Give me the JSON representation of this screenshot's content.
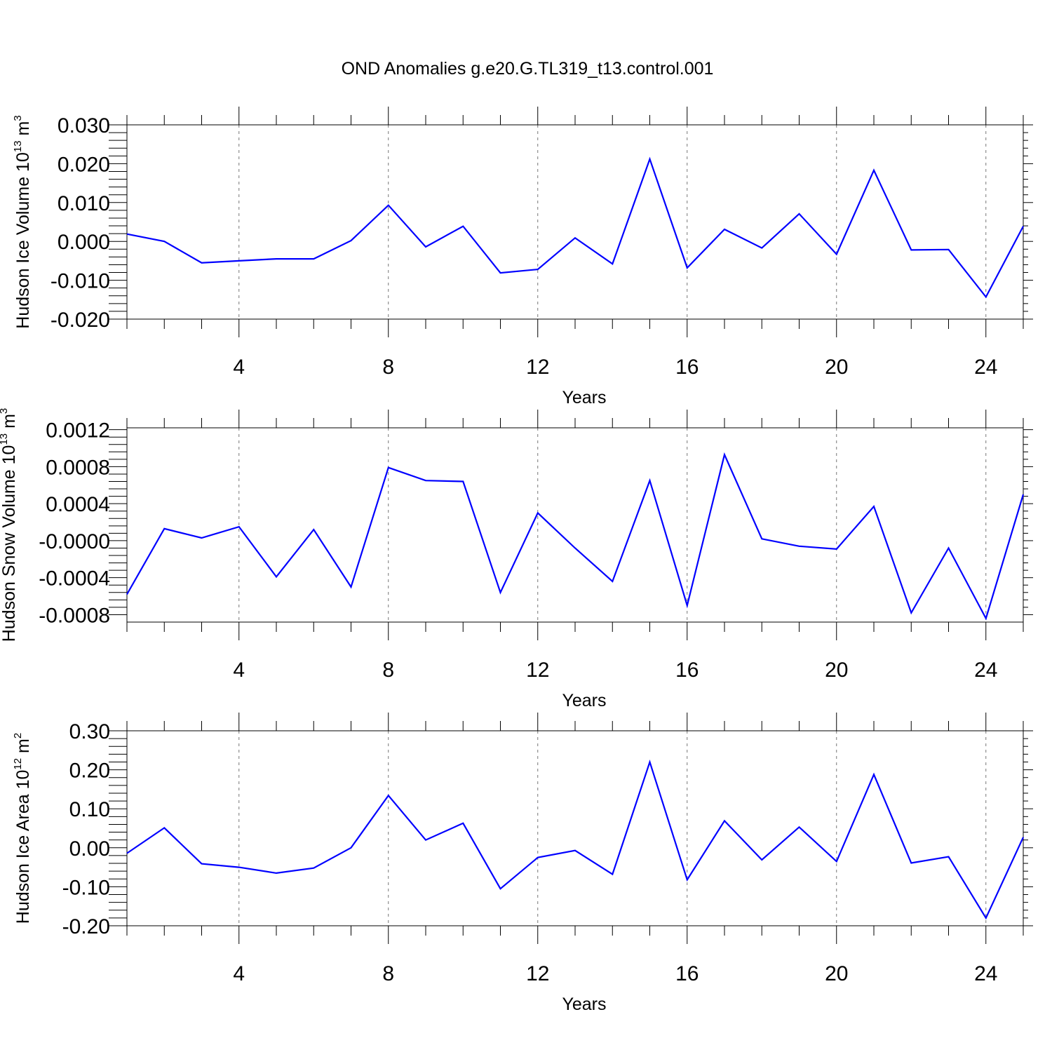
{
  "title": "OND Anomalies g.e20.G.TL319_t13.control.001",
  "line_color": "#0000ff",
  "chart_data": [
    {
      "type": "line",
      "ylabel": "Hudson Ice Volume 10",
      "ylabel_exp": "13",
      "ylabel_unit": " m",
      "ylabel_unit_exp": "3",
      "xlabel": "Years",
      "xlim": [
        1,
        25
      ],
      "ylim": [
        -0.02,
        0.03
      ],
      "ytick_values": [
        -0.02,
        -0.01,
        0.0,
        0.01,
        0.02,
        0.03
      ],
      "ytick_labels": [
        "-0.020",
        "-0.010",
        "0.000",
        "0.010",
        "0.020",
        "0.030"
      ],
      "xtick_values": [
        4,
        8,
        12,
        16,
        20,
        24
      ],
      "xtick_labels": [
        "4",
        "8",
        "12",
        "16",
        "20",
        "24"
      ],
      "grid": "vertical dashed at major x ticks",
      "x": [
        1,
        2,
        3,
        4,
        5,
        6,
        7,
        8,
        9,
        10,
        11,
        12,
        13,
        14,
        15,
        16,
        17,
        18,
        19,
        20,
        21,
        22,
        23,
        24,
        25
      ],
      "values": [
        0.0019,
        0.0,
        -0.0055,
        -0.005,
        -0.0045,
        -0.0045,
        0.0002,
        0.0093,
        -0.0014,
        0.0039,
        -0.0081,
        -0.0072,
        0.0009,
        -0.0058,
        0.0212,
        -0.0068,
        0.0031,
        -0.0017,
        0.0071,
        -0.0033,
        0.0183,
        -0.0022,
        -0.0021,
        -0.0143,
        0.0039
      ]
    },
    {
      "type": "line",
      "ylabel": "Hudson Snow Volume 10",
      "ylabel_exp": "13",
      "ylabel_unit": " m",
      "ylabel_unit_exp": "3",
      "xlabel": "Years",
      "xlim": [
        1,
        25
      ],
      "ylim": [
        -0.00088,
        0.00122
      ],
      "ytick_values": [
        -0.0008,
        -0.0004,
        0.0,
        0.0004,
        0.0008,
        0.0012
      ],
      "ytick_labels": [
        "-0.0008",
        "-0.0004",
        "-0.0000",
        "0.0004",
        "0.0008",
        "0.0012"
      ],
      "xtick_values": [
        4,
        8,
        12,
        16,
        20,
        24
      ],
      "xtick_labels": [
        "4",
        "8",
        "12",
        "16",
        "20",
        "24"
      ],
      "grid": "vertical dashed at major x ticks",
      "x": [
        1,
        2,
        3,
        4,
        5,
        6,
        7,
        8,
        9,
        10,
        11,
        12,
        13,
        14,
        15,
        16,
        17,
        18,
        19,
        20,
        21,
        22,
        23,
        24,
        25
      ],
      "values": [
        -0.00058,
        0.00013,
        3e-05,
        0.00015,
        -0.00039,
        0.00012,
        -0.0005,
        0.00079,
        0.00065,
        0.00064,
        -0.00056,
        0.0003,
        -8e-05,
        -0.00044,
        0.00065,
        -0.0007,
        0.00093,
        2e-05,
        -6e-05,
        -9e-05,
        0.00037,
        -0.00078,
        -8e-05,
        -0.00084,
        0.0005
      ]
    },
    {
      "type": "line",
      "ylabel": "Hudson Ice Area 10",
      "ylabel_exp": "12",
      "ylabel_unit": " m",
      "ylabel_unit_exp": "2",
      "xlabel": "Years",
      "xlim": [
        1,
        25
      ],
      "ylim": [
        -0.2,
        0.3
      ],
      "ytick_values": [
        -0.2,
        -0.1,
        0.0,
        0.1,
        0.2,
        0.3
      ],
      "ytick_labels": [
        "-0.20",
        "-0.10",
        "0.00",
        "0.10",
        "0.20",
        "0.30"
      ],
      "xtick_values": [
        4,
        8,
        12,
        16,
        20,
        24
      ],
      "xtick_labels": [
        "4",
        "8",
        "12",
        "16",
        "20",
        "24"
      ],
      "grid": "vertical dashed at major x ticks",
      "x": [
        1,
        2,
        3,
        4,
        5,
        6,
        7,
        8,
        9,
        10,
        11,
        12,
        13,
        14,
        15,
        16,
        17,
        18,
        19,
        20,
        21,
        22,
        23,
        24,
        25
      ],
      "values": [
        -0.014,
        0.051,
        -0.041,
        -0.05,
        -0.065,
        -0.052,
        0.0,
        0.134,
        0.02,
        0.063,
        -0.105,
        -0.025,
        -0.007,
        -0.068,
        0.22,
        -0.082,
        0.069,
        -0.031,
        0.053,
        -0.035,
        0.188,
        -0.039,
        -0.023,
        -0.18,
        0.027
      ]
    }
  ]
}
